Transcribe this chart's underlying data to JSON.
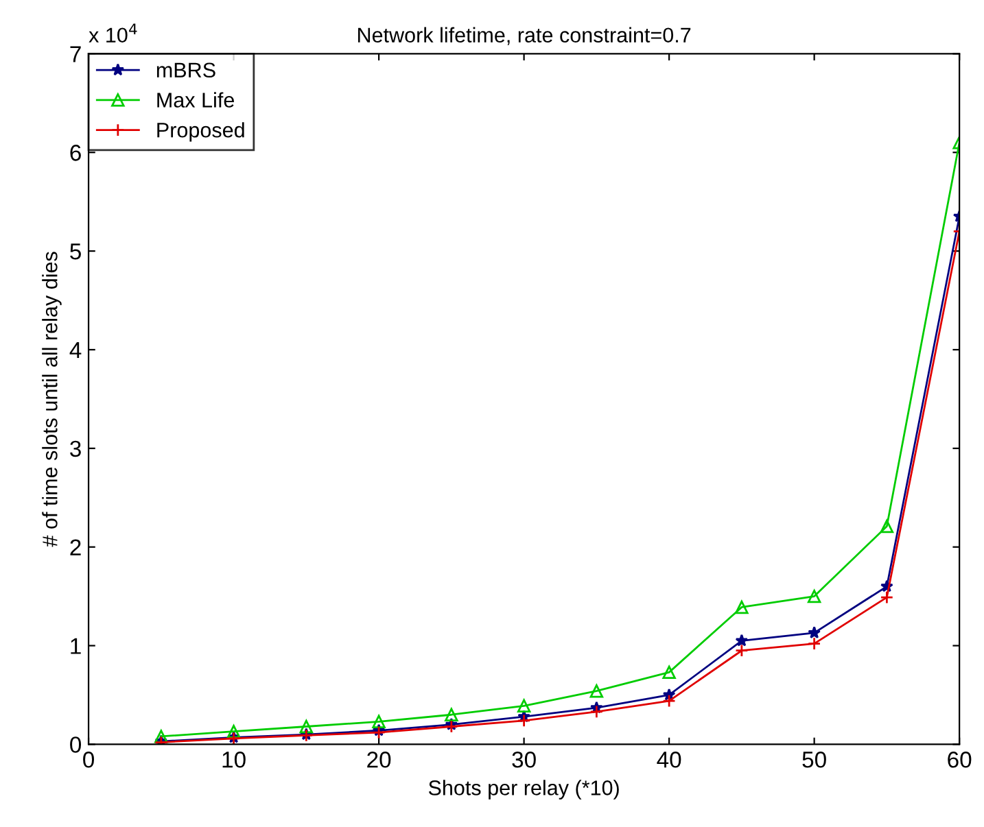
{
  "chart_data": {
    "type": "line",
    "title": "Network lifetime, rate constraint=0.7",
    "xlabel": "Shots per relay (*10)",
    "ylabel": "# of time slots until all relay dies",
    "annotations": [
      "x 10$^{4}$"
    ],
    "x": [
      5,
      10,
      15,
      20,
      25,
      30,
      35,
      40,
      45,
      50,
      55,
      60
    ],
    "series": [
      {
        "name": "mBRS",
        "color": "#000080",
        "marker": "star",
        "values": [
          0.03,
          0.07,
          0.1,
          0.14,
          0.2,
          0.28,
          0.37,
          0.5,
          1.05,
          1.13,
          1.6,
          5.35
        ]
      },
      {
        "name": "Max Life",
        "color": "#00cc00",
        "marker": "triangle",
        "values": [
          0.08,
          0.13,
          0.18,
          0.23,
          0.3,
          0.39,
          0.54,
          0.73,
          1.39,
          1.5,
          2.21,
          6.1
        ]
      },
      {
        "name": "Proposed",
        "color": "#e00000",
        "marker": "cross",
        "values": [
          0.02,
          0.06,
          0.09,
          0.12,
          0.18,
          0.24,
          0.33,
          0.44,
          0.95,
          1.02,
          1.49,
          5.2
        ]
      }
    ],
    "xlim": [
      0,
      60
    ],
    "xticks": [
      0,
      10,
      20,
      30,
      40,
      50,
      60
    ],
    "ylim": [
      0,
      7
    ],
    "yticks": [
      0,
      1,
      2,
      3,
      4,
      5,
      6,
      7
    ],
    "legend": "top left",
    "grid": false
  }
}
